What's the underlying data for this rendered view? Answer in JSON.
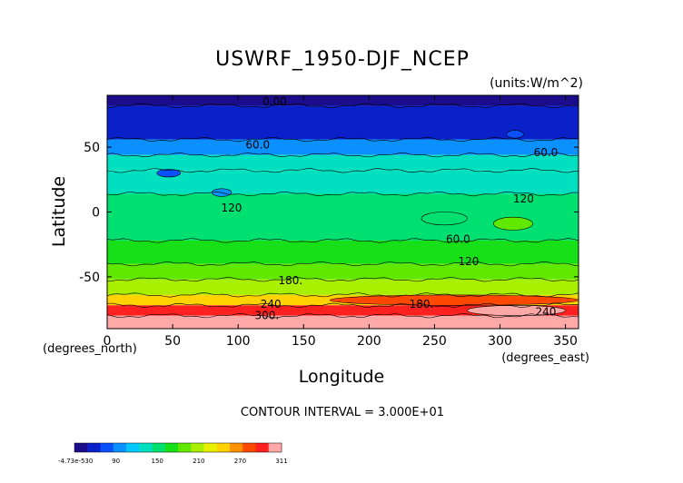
{
  "chart_data": {
    "type": "heatmap",
    "title": "USWRF_1950-DJF_NCEP",
    "units_label": "(units:W/m^2)",
    "xlabel": "Longitude",
    "ylabel": "Latitude",
    "x_unit_label": "(degrees_east)",
    "y_unit_label": "(degrees_north)",
    "xlim": [
      0,
      360
    ],
    "ylim": [
      -90,
      90
    ],
    "x_ticks": [
      0,
      50,
      100,
      150,
      200,
      250,
      300,
      350
    ],
    "y_ticks": [
      50,
      0,
      -50
    ],
    "grid": false,
    "contour_interval_text": "CONTOUR INTERVAL = 3.000E+01",
    "lat_bands": [
      {
        "lat": [
          82,
          90
        ],
        "value": 0
      },
      {
        "lat": [
          56,
          82
        ],
        "value": 20
      },
      {
        "lat": [
          44,
          56
        ],
        "value": 75
      },
      {
        "lat": [
          32,
          44
        ],
        "value": 100
      },
      {
        "lat": [
          14,
          32
        ],
        "value": 115
      },
      {
        "lat": [
          -22,
          14
        ],
        "value": 135
      },
      {
        "lat": [
          -40,
          -22
        ],
        "value": 150
      },
      {
        "lat": [
          -52,
          -40
        ],
        "value": 165
      },
      {
        "lat": [
          -64,
          -52
        ],
        "value": 190
      },
      {
        "lat": [
          -72,
          -64
        ],
        "value": 225
      },
      {
        "lat": [
          -80,
          -72
        ],
        "value": 280
      },
      {
        "lat": [
          -90,
          -80
        ],
        "value": 305
      }
    ],
    "features": [
      {
        "lon": [
          305,
          318
        ],
        "lat": [
          57,
          63
        ],
        "value": 45
      },
      {
        "lon": [
          38,
          56
        ],
        "lat": [
          27,
          33
        ],
        "value": 55
      },
      {
        "lon": [
          80,
          95
        ],
        "lat": [
          12,
          18
        ],
        "value": 75
      },
      {
        "lon": [
          240,
          275
        ],
        "lat": [
          -10,
          0
        ],
        "value": 120
      },
      {
        "lon": [
          295,
          325
        ],
        "lat": [
          -14,
          -4
        ],
        "value": 165
      },
      {
        "lon": [
          170,
          360
        ],
        "lat": [
          -72,
          -64
        ],
        "value": 260
      },
      {
        "lon": [
          275,
          350
        ],
        "lat": [
          -80,
          -72
        ],
        "value": 300
      }
    ],
    "contour_labels": [
      {
        "text": "0.00",
        "lon": 128,
        "lat": 85
      },
      {
        "text": "60.0",
        "lon": 115,
        "lat": 52
      },
      {
        "text": "60.0",
        "lon": 335,
        "lat": 46
      },
      {
        "text": "120",
        "lon": 95,
        "lat": 3
      },
      {
        "text": "120",
        "lon": 318,
        "lat": 10
      },
      {
        "text": "120",
        "lon": 276,
        "lat": -38
      },
      {
        "text": "60.0",
        "lon": 268,
        "lat": -21
      },
      {
        "text": "180.",
        "lon": 140,
        "lat": -53
      },
      {
        "text": "180.",
        "lon": 240,
        "lat": -71
      },
      {
        "text": "240",
        "lon": 125,
        "lat": -71
      },
      {
        "text": "300.",
        "lon": 122,
        "lat": -80
      },
      {
        "text": "240",
        "lon": 335,
        "lat": -77
      }
    ],
    "colorbar": {
      "labels": [
        "-4.73e-530",
        "90",
        "150",
        "210",
        "270",
        "311"
      ],
      "range": [
        0,
        311
      ],
      "colors": [
        "#1a0c8a",
        "#0a20c8",
        "#0a50ff",
        "#0a90ff",
        "#00c8ff",
        "#00e0c0",
        "#00e070",
        "#18e018",
        "#60e800",
        "#a8f000",
        "#e8f000",
        "#ffd200",
        "#ff9000",
        "#ff4800",
        "#ff2020",
        "#ffa8a8"
      ]
    }
  }
}
